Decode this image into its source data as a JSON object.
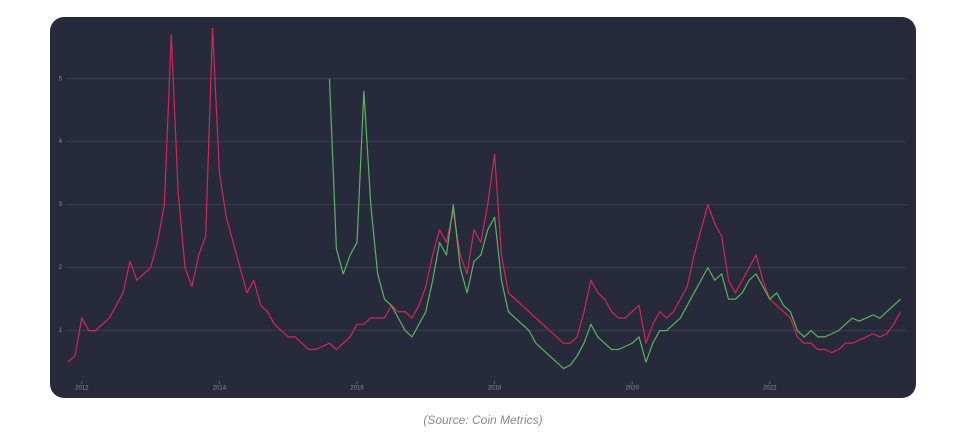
{
  "caption": "(Source: Coin Metrics)",
  "chart_data": {
    "type": "line",
    "x": [
      2011.8,
      2011.9,
      2012.0,
      2012.1,
      2012.2,
      2012.3,
      2012.4,
      2012.5,
      2012.6,
      2012.7,
      2012.8,
      2012.9,
      2013.0,
      2013.1,
      2013.2,
      2013.3,
      2013.4,
      2013.5,
      2013.6,
      2013.7,
      2013.8,
      2013.9,
      2014.0,
      2014.1,
      2014.2,
      2014.3,
      2014.4,
      2014.5,
      2014.6,
      2014.7,
      2014.8,
      2014.9,
      2015.0,
      2015.1,
      2015.2,
      2015.3,
      2015.4,
      2015.5,
      2015.6,
      2015.7,
      2015.8,
      2015.9,
      2016.0,
      2016.1,
      2016.2,
      2016.3,
      2016.4,
      2016.5,
      2016.6,
      2016.7,
      2016.8,
      2016.9,
      2017.0,
      2017.1,
      2017.2,
      2017.3,
      2017.4,
      2017.5,
      2017.6,
      2017.7,
      2017.8,
      2017.9,
      2018.0,
      2018.1,
      2018.2,
      2018.3,
      2018.4,
      2018.5,
      2018.6,
      2018.7,
      2018.8,
      2018.9,
      2019.0,
      2019.1,
      2019.2,
      2019.3,
      2019.4,
      2019.5,
      2019.6,
      2019.7,
      2019.8,
      2019.9,
      2020.0,
      2020.1,
      2020.2,
      2020.3,
      2020.4,
      2020.5,
      2020.6,
      2020.7,
      2020.8,
      2020.9,
      2021.0,
      2021.1,
      2021.2,
      2021.3,
      2021.4,
      2021.5,
      2021.6,
      2021.7,
      2021.8,
      2021.9,
      2022.0,
      2022.1,
      2022.2,
      2022.3,
      2022.4,
      2022.5,
      2022.6,
      2022.7,
      2022.8,
      2022.9,
      2023.0,
      2023.1,
      2023.2,
      2023.3,
      2023.4,
      2023.5,
      2023.6,
      2023.7,
      2023.8,
      2023.9
    ],
    "series": [
      {
        "color": "#e0245e",
        "values": [
          0.5,
          0.6,
          1.2,
          1.0,
          1.0,
          1.1,
          1.2,
          1.4,
          1.6,
          2.1,
          1.8,
          1.9,
          2.0,
          2.4,
          3.0,
          5.7,
          3.2,
          2.0,
          1.7,
          2.2,
          2.5,
          5.8,
          3.5,
          2.8,
          2.4,
          2.0,
          1.6,
          1.8,
          1.4,
          1.3,
          1.1,
          1.0,
          0.9,
          0.9,
          0.8,
          0.7,
          0.7,
          0.75,
          0.8,
          0.7,
          0.8,
          0.9,
          1.1,
          1.1,
          1.2,
          1.2,
          1.2,
          1.4,
          1.3,
          1.3,
          1.2,
          1.4,
          1.7,
          2.2,
          2.6,
          2.4,
          2.9,
          2.2,
          1.9,
          2.6,
          2.4,
          3.0,
          3.8,
          2.2,
          1.6,
          1.5,
          1.4,
          1.3,
          1.2,
          1.1,
          1.0,
          0.9,
          0.8,
          0.8,
          0.9,
          1.3,
          1.8,
          1.6,
          1.5,
          1.3,
          1.2,
          1.2,
          1.3,
          1.4,
          0.8,
          1.1,
          1.3,
          1.2,
          1.3,
          1.5,
          1.7,
          2.2,
          2.6,
          3.0,
          2.7,
          2.5,
          1.8,
          1.6,
          1.8,
          2.0,
          2.2,
          1.8,
          1.5,
          1.4,
          1.3,
          1.2,
          0.9,
          0.8,
          0.8,
          0.7,
          0.7,
          0.65,
          0.7,
          0.8,
          0.8,
          0.85,
          0.9,
          0.95,
          0.9,
          0.95,
          1.1,
          1.3
        ]
      },
      {
        "color": "#5dbb63",
        "values": [
          null,
          null,
          null,
          null,
          null,
          null,
          null,
          null,
          null,
          null,
          null,
          null,
          null,
          null,
          null,
          null,
          null,
          null,
          null,
          null,
          null,
          null,
          null,
          null,
          null,
          null,
          null,
          null,
          null,
          null,
          null,
          null,
          null,
          null,
          null,
          null,
          null,
          null,
          5.0,
          2.3,
          1.9,
          2.2,
          2.4,
          4.8,
          3.0,
          1.9,
          1.5,
          1.4,
          1.2,
          1.0,
          0.9,
          1.1,
          1.3,
          1.8,
          2.4,
          2.2,
          3.0,
          2.0,
          1.6,
          2.1,
          2.2,
          2.6,
          2.8,
          1.8,
          1.3,
          1.2,
          1.1,
          1.0,
          0.8,
          0.7,
          0.6,
          0.5,
          0.4,
          0.45,
          0.6,
          0.8,
          1.1,
          0.9,
          0.8,
          0.7,
          0.7,
          0.75,
          0.8,
          0.9,
          0.5,
          0.8,
          1.0,
          1.0,
          1.1,
          1.2,
          1.4,
          1.6,
          1.8,
          2.0,
          1.8,
          1.9,
          1.5,
          1.5,
          1.6,
          1.8,
          1.9,
          1.7,
          1.5,
          1.6,
          1.4,
          1.3,
          1.0,
          0.9,
          1.0,
          0.9,
          0.9,
          0.95,
          1.0,
          1.1,
          1.2,
          1.15,
          1.2,
          1.25,
          1.2,
          1.3,
          1.4,
          1.5
        ]
      }
    ],
    "xlim": [
      2011.77,
      2023.98
    ],
    "xticks": [
      2012,
      2014,
      2016,
      2018,
      2020,
      2022
    ],
    "ylim": [
      0.2,
      5.9
    ],
    "yticks": [
      1,
      2,
      3,
      4,
      5
    ],
    "grid": true
  }
}
